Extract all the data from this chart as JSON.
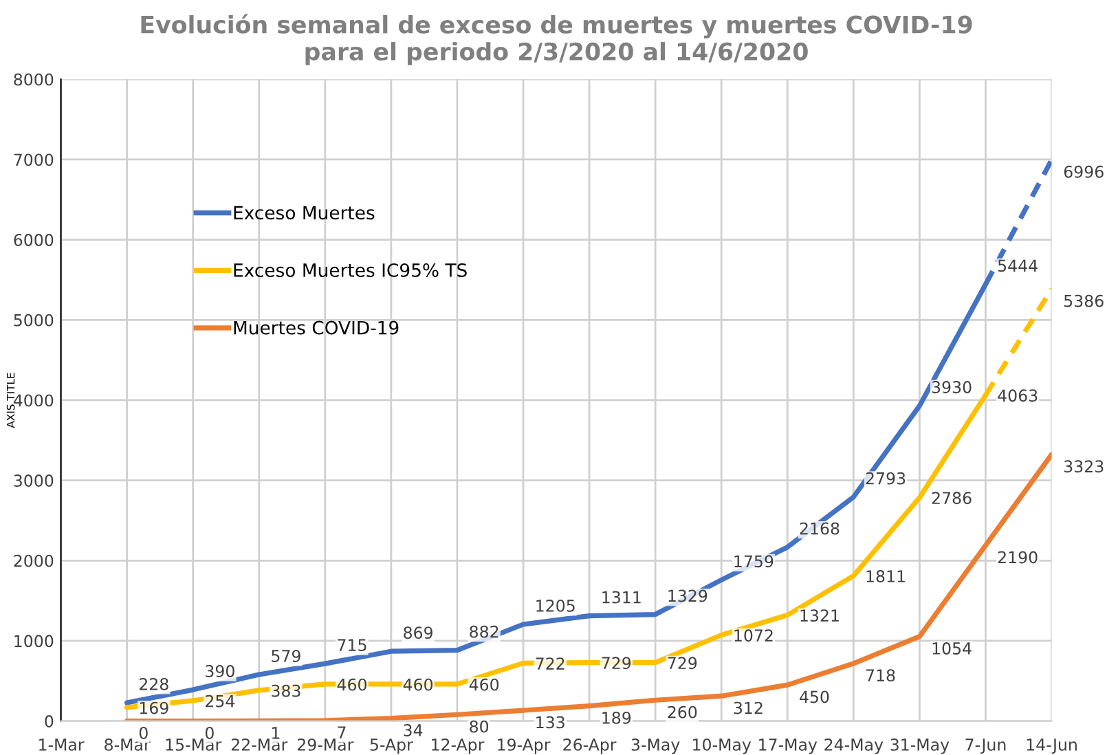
{
  "chart_data": {
    "type": "line",
    "title": "Evolución semanal de exceso de muertes y muertes COVID-19\npara el periodo 2/3/2020 al 14/6/2020",
    "ylabel": "AXIS TITLE",
    "categories": [
      "1-Mar",
      "8-Mar",
      "15-Mar",
      "22-Mar",
      "29-Mar",
      "5-Apr",
      "12-Apr",
      "19-Apr",
      "26-Apr",
      "3-May",
      "10-May",
      "17-May",
      "24-May",
      "31-May",
      "7-Jun",
      "14-Jun"
    ],
    "series": [
      {
        "name": "Exceso Muertes",
        "color": "#4472c4",
        "line_style": "solid",
        "values": [
          null,
          228,
          390,
          579,
          715,
          869,
          882,
          1205,
          1311,
          1329,
          1759,
          2168,
          2793,
          3930,
          5444,
          null
        ],
        "value_labels": [
          null,
          "228",
          "390",
          "579",
          "715",
          "869",
          "882",
          "1205",
          "1311",
          "1329",
          "1759",
          "2168",
          "2793",
          "3930",
          "5444",
          null
        ]
      },
      {
        "name": "Exceso Muertes IC95% TS",
        "color": "#ffc000",
        "line_style": "solid",
        "values": [
          null,
          169,
          254,
          383,
          460,
          460,
          460,
          722,
          729,
          729,
          1072,
          1321,
          1811,
          2786,
          4063,
          null
        ],
        "value_labels": [
          null,
          "169",
          "254",
          "383",
          "460",
          "460",
          "460",
          "722",
          "729",
          "729",
          "1072",
          "1321",
          "1811",
          "2786",
          "4063",
          null
        ]
      },
      {
        "name": "Muertes COVID-19",
        "color": "#ed7d31",
        "line_style": "solid",
        "values": [
          null,
          0,
          0,
          1,
          7,
          34,
          80,
          133,
          189,
          260,
          312,
          450,
          718,
          1054,
          2190,
          3323
        ],
        "value_labels": [
          null,
          "0",
          "0",
          "1",
          "7",
          "34",
          "80",
          "133",
          "189",
          "260",
          "312",
          "450",
          "718",
          "1054",
          "2190",
          "3323"
        ]
      },
      {
        "color": "#4472c4",
        "line_style": "dashed",
        "values": [
          null,
          null,
          null,
          null,
          null,
          null,
          null,
          null,
          null,
          null,
          null,
          null,
          null,
          null,
          5444,
          6996
        ],
        "value_labels": [
          null,
          null,
          null,
          null,
          null,
          null,
          null,
          null,
          null,
          null,
          null,
          null,
          null,
          null,
          null,
          "6996"
        ]
      },
      {
        "color": "#ffc000",
        "line_style": "dashed",
        "values": [
          null,
          null,
          null,
          null,
          null,
          null,
          null,
          null,
          null,
          null,
          null,
          null,
          null,
          null,
          4063,
          5386
        ],
        "value_labels": [
          null,
          null,
          null,
          null,
          null,
          null,
          null,
          null,
          null,
          null,
          null,
          null,
          null,
          null,
          null,
          "5386"
        ]
      }
    ],
    "ylim": [
      0,
      8000
    ],
    "yticks": [
      0,
      1000,
      2000,
      3000,
      4000,
      5000,
      6000,
      7000,
      8000
    ],
    "grid": true,
    "legend": "left",
    "marker": "none"
  }
}
